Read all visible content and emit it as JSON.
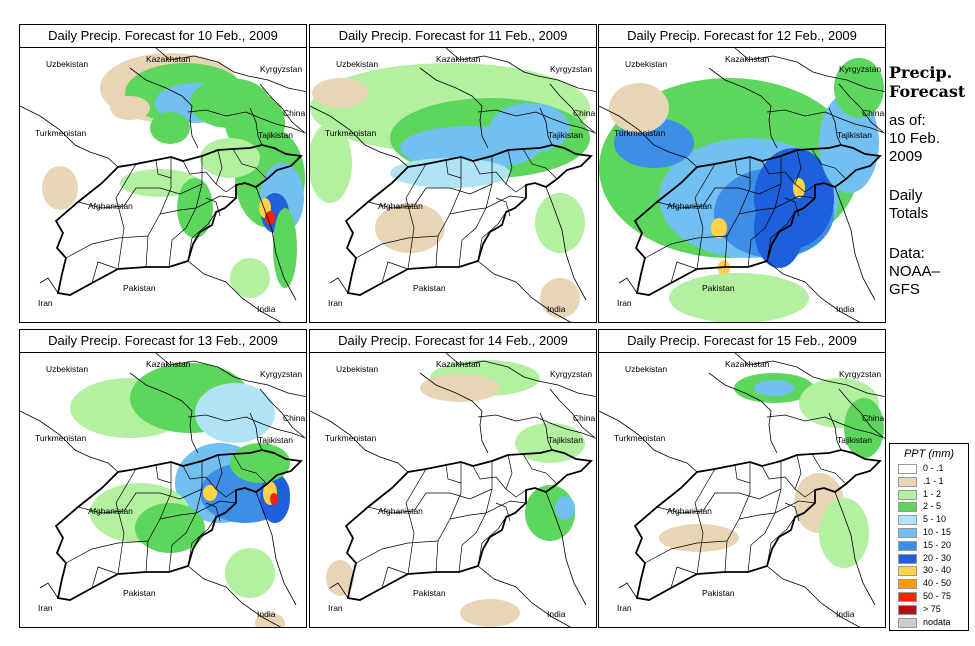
{
  "panels": [
    {
      "title": "Daily Precip. Forecast for  10 Feb., 2009"
    },
    {
      "title": "Daily Precip. Forecast for  11 Feb., 2009"
    },
    {
      "title": "Daily Precip. Forecast for  12 Feb., 2009"
    },
    {
      "title": "Daily Precip. Forecast for  13 Feb., 2009"
    },
    {
      "title": "Daily Precip. Forecast for  14 Feb., 2009"
    },
    {
      "title": "Daily Precip. Forecast for  15 Feb., 2009"
    }
  ],
  "country_labels": {
    "uzbekistan": "Uzbekistan",
    "kazakhstan": "Kazakhstan",
    "kyrgyzstan": "Kyrgyzstan",
    "china": "China",
    "tajikistan": "Tajikistan",
    "turkmenistan": "Turkmenistan",
    "afghanistan": "Afghanistan",
    "iran": "Iran",
    "pakistan": "Pakistan",
    "india": "India"
  },
  "side": {
    "title_line1": "Precip.",
    "title_line2": "Forecast",
    "asof_label": "as of:",
    "date_line1": "10 Feb.",
    "date_line2": "2009",
    "totals_line1": "Daily",
    "totals_line2": "Totals",
    "data_line1": "Data:",
    "data_line2": "NOAA–",
    "data_line3": "GFS"
  },
  "legend": {
    "title": "PPT (mm)",
    "items": [
      {
        "label": "0 - .1",
        "color": "#ffffff"
      },
      {
        "label": ".1 - 1",
        "color": "#e8d5b5"
      },
      {
        "label": "1 - 2",
        "color": "#b3f0a0"
      },
      {
        "label": "2 - 5",
        "color": "#5cd65c"
      },
      {
        "label": "5 - 10",
        "color": "#b0e4f5"
      },
      {
        "label": "10 - 15",
        "color": "#72bff2"
      },
      {
        "label": "15 - 20",
        "color": "#3c8ee6"
      },
      {
        "label": "20 - 30",
        "color": "#1e5fdc"
      },
      {
        "label": "30 - 40",
        "color": "#ffd24a"
      },
      {
        "label": "40 - 50",
        "color": "#ff9900"
      },
      {
        "label": "50 - 75",
        "color": "#ff2200"
      },
      {
        "label": "> 75",
        "color": "#b01212"
      },
      {
        "label": "nodata",
        "color": "#cccccc"
      }
    ]
  }
}
